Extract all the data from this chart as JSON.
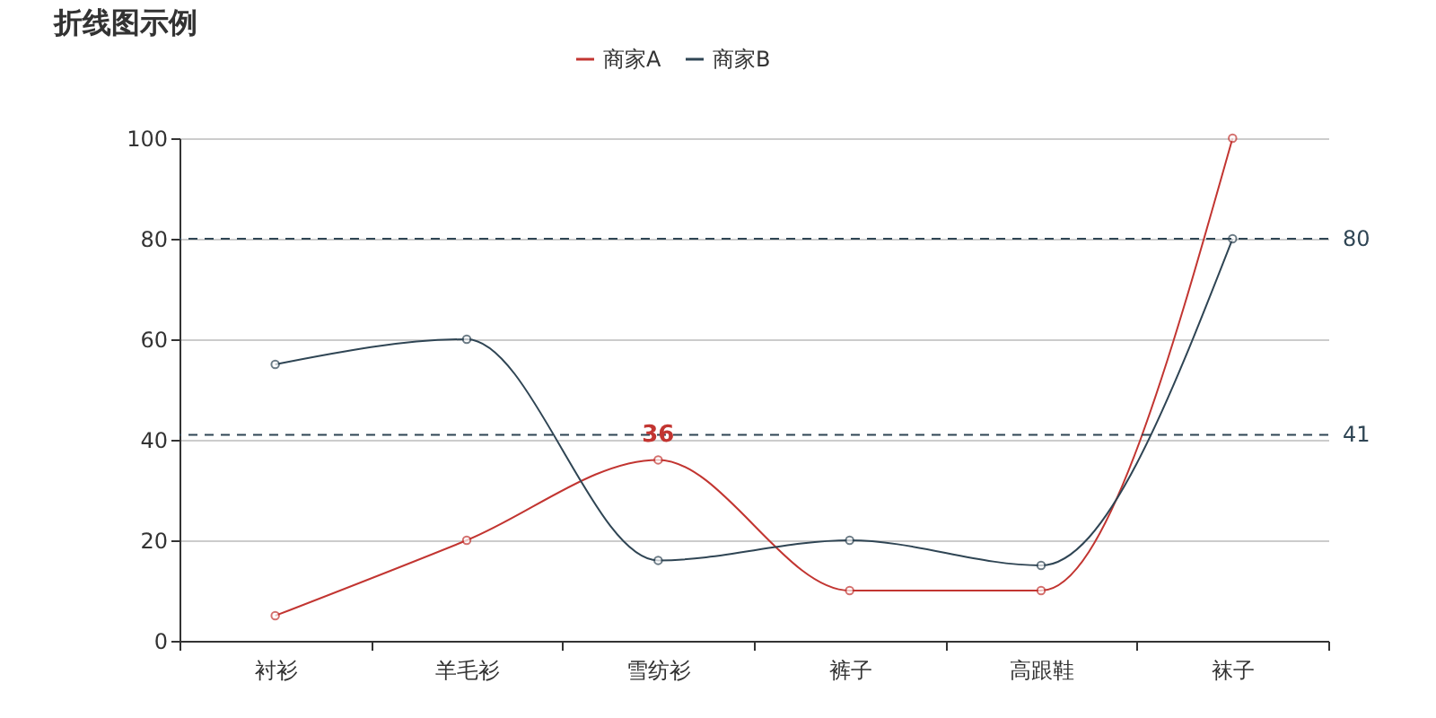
{
  "chart_data": {
    "type": "line",
    "title": "折线图示例",
    "categories": [
      "衬衫",
      "羊毛衫",
      "雪纺衫",
      "裤子",
      "高跟鞋",
      "袜子"
    ],
    "series": [
      {
        "name": "商家A",
        "color": "#c23531",
        "values": [
          5,
          20,
          36,
          10,
          10,
          100
        ]
      },
      {
        "name": "商家B",
        "color": "#2f4554",
        "values": [
          55,
          60,
          16,
          20,
          15,
          80
        ]
      }
    ],
    "ylim": [
      0,
      100
    ],
    "yticks": [
      0,
      20,
      40,
      60,
      80,
      100
    ],
    "grid": "y",
    "legend": "top",
    "marker": "circle",
    "ref_lines": [
      {
        "axis": "y",
        "value": 80,
        "label": "80",
        "color": "#2f4554",
        "line_style": "dashed"
      },
      {
        "axis": "y",
        "value": 41,
        "label": "41",
        "color": "#2f4554",
        "line_style": "dashed"
      }
    ],
    "annotations": [
      {
        "text": "36",
        "x": "雪纺衫",
        "y": 36
      }
    ]
  }
}
